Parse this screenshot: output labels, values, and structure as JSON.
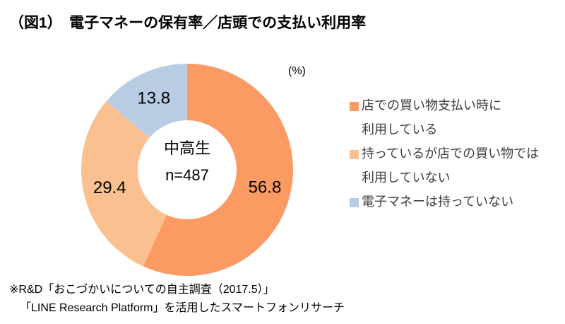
{
  "title": "（図1）　電子マネーの保有率／店頭での支払い利用率",
  "chart_data": {
    "type": "pie",
    "subtype": "donut",
    "title": "電子マネーの保有率／店頭での支払い利用率",
    "unit_label": "(%)",
    "center_label": {
      "line1": "中高生",
      "line2": "n=487"
    },
    "start_angle_deg": 0,
    "direction": "clockwise",
    "data_labels": "inside",
    "legend_position": "right",
    "inner_radius_ratio": 0.465,
    "slices": [
      {
        "label": "店での買い物支払い時に利用している",
        "value": 56.8,
        "color": "#FB9A62"
      },
      {
        "label": "持っているが店での買い物では利用していない",
        "value": 29.4,
        "color": "#FAC08F"
      },
      {
        "label": "電子マネーは持っていない",
        "value": 13.8,
        "color": "#B8CCE4"
      }
    ]
  },
  "legend": {
    "items": [
      {
        "label": "店での買い物支払い時に\n利用している",
        "color": "#FB9A62"
      },
      {
        "label": "持っているが店での買い物では\n利用していない",
        "color": "#FAC08F"
      },
      {
        "label": "電子マネーは持っていない",
        "color": "#B8CCE4"
      }
    ]
  },
  "footnote": {
    "line1": "※R&D「おこづかいについての自主調査（2017.5）」",
    "line2": "「LINE Research Platform」を活用したスマートフォンリサーチ"
  }
}
